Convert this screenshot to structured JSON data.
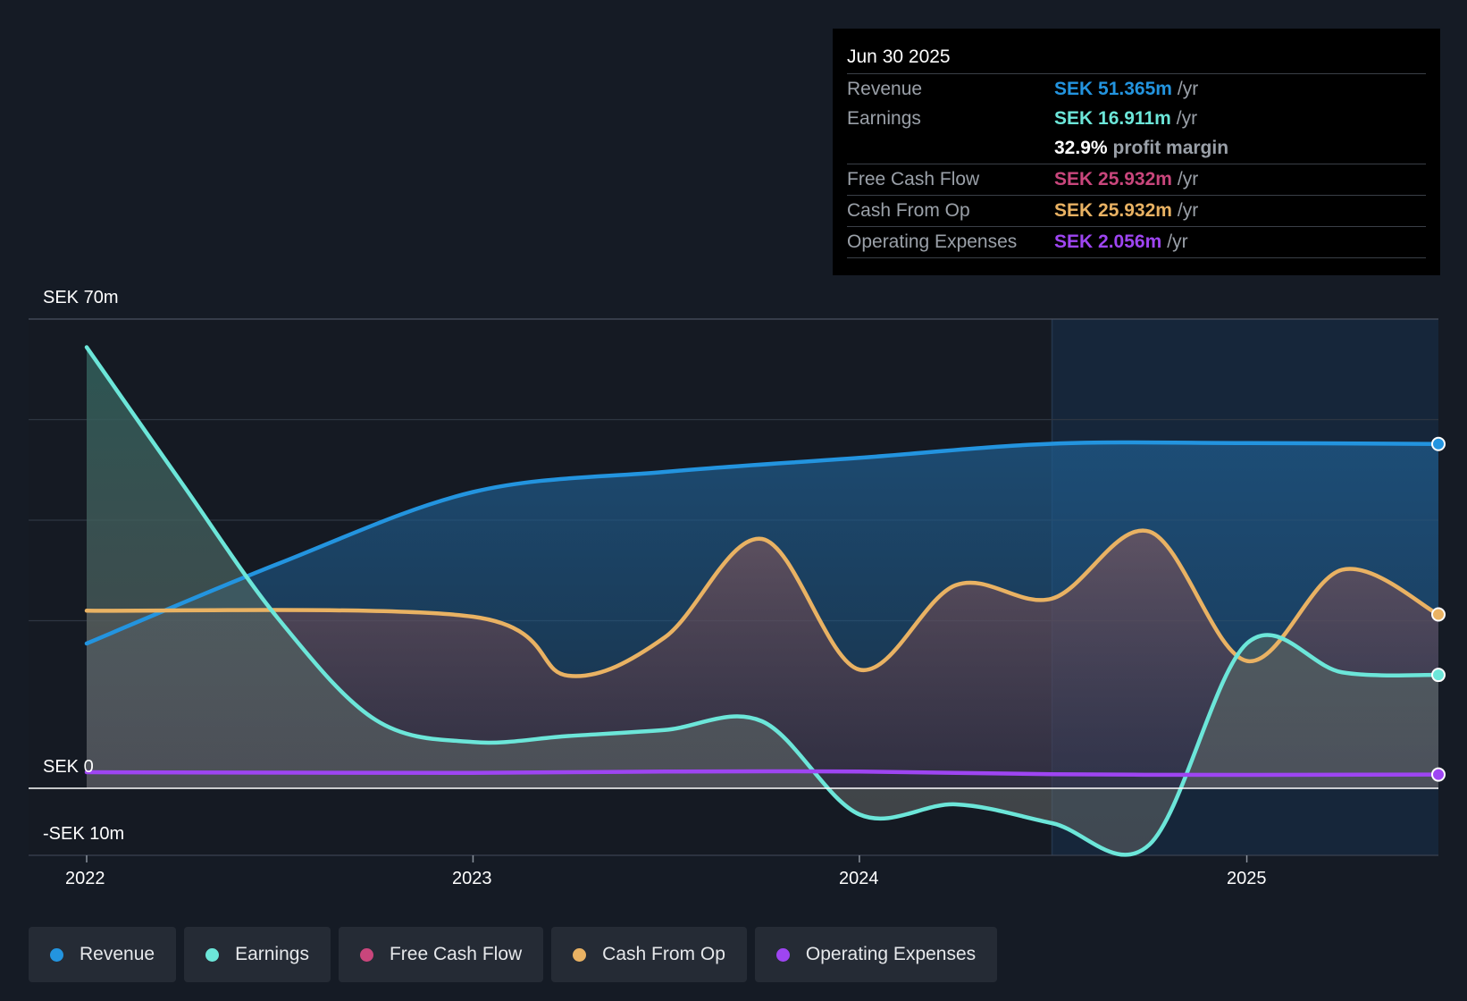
{
  "tooltip": {
    "date": "Jun 30 2025",
    "rows": [
      {
        "label": "Revenue",
        "value": "SEK 51.365m",
        "unit": "/yr",
        "color": "#2394df"
      },
      {
        "label": "Earnings",
        "value": "SEK 16.911m",
        "unit": "/yr",
        "color": "#6ce6d9"
      },
      {
        "label": "",
        "value": "32.9%",
        "unit": "profit margin",
        "color": "#ffffff"
      },
      {
        "label": "Free Cash Flow",
        "value": "SEK 25.932m",
        "unit": "/yr",
        "color": "#c9467c"
      },
      {
        "label": "Cash From Op",
        "value": "SEK 25.932m",
        "unit": "/yr",
        "color": "#e9b263"
      },
      {
        "label": "Operating Expenses",
        "value": "SEK 2.056m",
        "unit": "/yr",
        "color": "#9e45f2"
      }
    ]
  },
  "legend": [
    {
      "label": "Revenue",
      "color": "#2394df"
    },
    {
      "label": "Earnings",
      "color": "#6ce6d9"
    },
    {
      "label": "Free Cash Flow",
      "color": "#c9467c"
    },
    {
      "label": "Cash From Op",
      "color": "#e9b263"
    },
    {
      "label": "Operating Expenses",
      "color": "#9e45f2"
    }
  ],
  "chart_data": {
    "type": "area",
    "y_labels": [
      "SEK 70m",
      "SEK 0",
      "-SEK 10m"
    ],
    "ylim": [
      -10,
      70
    ],
    "x_ticks": [
      "2022",
      "2023",
      "2024",
      "2025"
    ],
    "xlim": [
      "2022-01-01",
      "2025-07-01"
    ],
    "highlight_start": "2024-07-01",
    "series": [
      {
        "name": "Revenue",
        "color": "#2394df",
        "points": [
          [
            "2022-01-01",
            21.6
          ],
          [
            "2022-07-01",
            33.5
          ],
          [
            "2023-01-01",
            44.2
          ],
          [
            "2023-07-01",
            47.2
          ],
          [
            "2024-01-01",
            49.3
          ],
          [
            "2024-07-01",
            51.4
          ],
          [
            "2025-01-01",
            51.5
          ],
          [
            "2025-07-01",
            51.365
          ]
        ]
      },
      {
        "name": "Earnings",
        "color": "#6ce6d9",
        "points": [
          [
            "2022-01-01",
            65.8
          ],
          [
            "2022-04-01",
            45.5
          ],
          [
            "2022-07-01",
            25.3
          ],
          [
            "2022-10-01",
            10.2
          ],
          [
            "2023-01-01",
            6.9
          ],
          [
            "2023-04-01",
            7.8
          ],
          [
            "2023-07-01",
            8.7
          ],
          [
            "2023-10-01",
            10.0
          ],
          [
            "2024-01-01",
            -3.9
          ],
          [
            "2024-04-01",
            -2.4
          ],
          [
            "2024-07-01",
            -5.2
          ],
          [
            "2024-10-01",
            -8.4
          ],
          [
            "2025-01-01",
            21.6
          ],
          [
            "2025-04-01",
            17.3
          ],
          [
            "2025-07-01",
            16.911
          ]
        ]
      },
      {
        "name": "Cash From Op",
        "color": "#e9b263",
        "points": [
          [
            "2022-01-01",
            26.5
          ],
          [
            "2023-01-01",
            25.6
          ],
          [
            "2023-04-01",
            16.8
          ],
          [
            "2023-07-01",
            22.5
          ],
          [
            "2023-10-01",
            37.2
          ],
          [
            "2024-01-01",
            17.7
          ],
          [
            "2024-04-01",
            30.3
          ],
          [
            "2024-07-01",
            28.3
          ],
          [
            "2024-10-01",
            38.3
          ],
          [
            "2025-01-01",
            19.0
          ],
          [
            "2025-04-01",
            32.6
          ],
          [
            "2025-07-01",
            25.932
          ]
        ]
      },
      {
        "name": "Operating Expenses",
        "color": "#9e45f2",
        "points": [
          [
            "2022-01-01",
            2.4
          ],
          [
            "2023-01-01",
            2.3
          ],
          [
            "2023-07-01",
            2.5
          ],
          [
            "2024-01-01",
            2.5
          ],
          [
            "2024-07-01",
            2.1
          ],
          [
            "2025-01-01",
            2.0
          ],
          [
            "2025-07-01",
            2.056
          ]
        ]
      }
    ]
  }
}
